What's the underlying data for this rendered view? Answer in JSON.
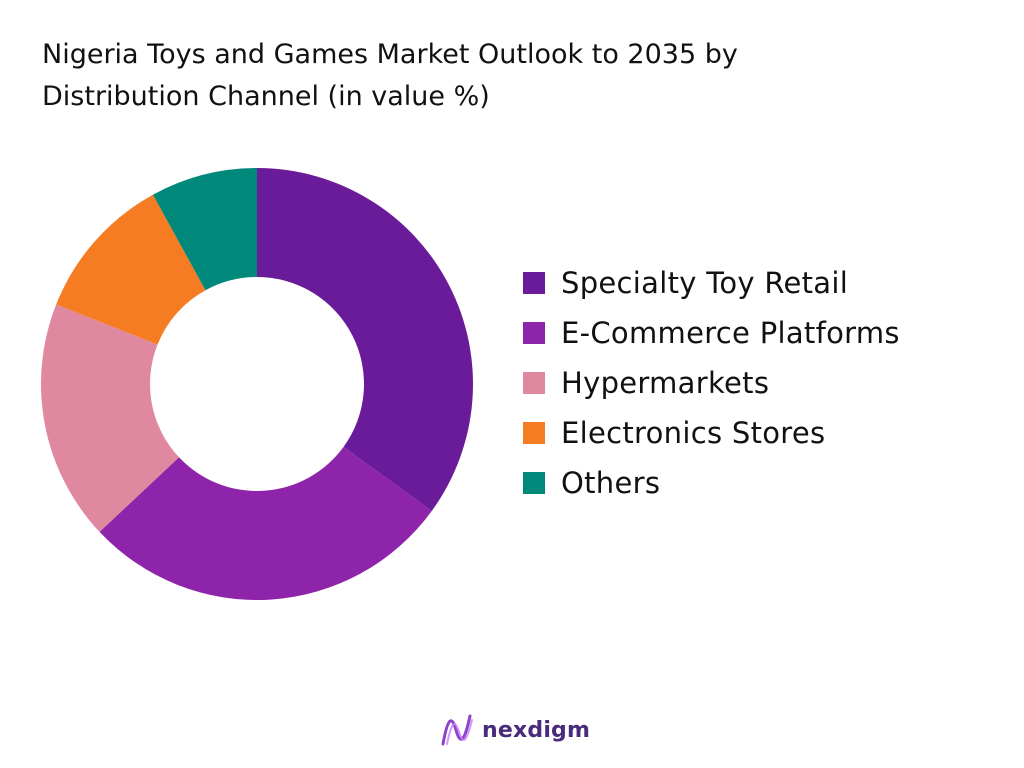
{
  "chart_data": {
    "type": "pie",
    "title_lines": [
      "Nigeria Toys and Games Market Outlook to 2035 by",
      "Distribution Channel (in value %)"
    ],
    "categories": [
      "Specialty Toy Retail",
      "E-Commerce Platforms",
      "Hypermarkets",
      "Electronics Stores",
      "Others"
    ],
    "values": [
      35,
      28,
      18,
      11,
      8
    ],
    "colors": [
      "#6a1b9a",
      "#8e24aa",
      "#e088a0",
      "#f57c22",
      "#00897b"
    ],
    "donut": true,
    "legend_position": "right"
  },
  "brand": {
    "name": "nexdigm"
  }
}
